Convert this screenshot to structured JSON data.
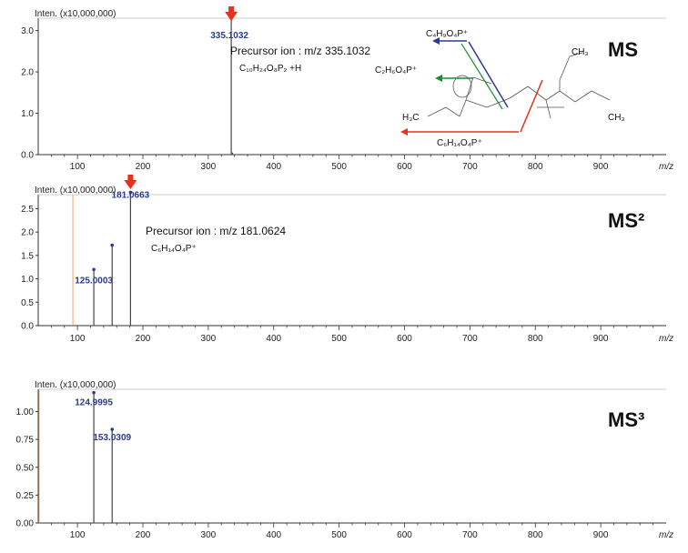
{
  "chart_data": [
    {
      "type": "bar",
      "panel_title": "MS",
      "y_unit_label": "Inten. (x10,000,000)",
      "xlabel": "m/z",
      "xlim": [
        40,
        1000
      ],
      "x_ticks": [
        "100",
        "200",
        "300",
        "400",
        "500",
        "600",
        "700",
        "800",
        "900"
      ],
      "ylim": [
        0,
        3.3
      ],
      "y_ticks": [
        "0.0",
        "1.0",
        "2.0",
        "3.0"
      ],
      "peaks": [
        {
          "x": 335.1032,
          "y": 3.3,
          "label": "335.1032",
          "precursor_marker": true
        },
        {
          "x": 337.0,
          "y": 0.05,
          "label": ""
        }
      ],
      "annotation": {
        "precursor_text": "Precursor ion : m/z 335.1032",
        "formula_text": "C₁₀H₂₄O₈P₂ +H"
      },
      "fragments": [
        {
          "label": "C₄H₉O₄P⁺",
          "color": "#2b3990"
        },
        {
          "label": "C₂H₆O₄P⁺",
          "color": "#1d8a34"
        },
        {
          "label": "C₆H₁₄O₄P⁺",
          "color": "#e8301d"
        }
      ],
      "structure_labels": [
        "H₃C",
        "CH₃",
        "CH₃"
      ]
    },
    {
      "type": "bar",
      "panel_title": "MS²",
      "y_unit_label": "Inten. (x10,000,000)",
      "xlabel": "m/z",
      "xlim": [
        40,
        1000
      ],
      "x_ticks": [
        "100",
        "200",
        "300",
        "400",
        "500",
        "600",
        "700",
        "800",
        "900"
      ],
      "ylim": [
        0,
        2.8
      ],
      "y_ticks": [
        "0.0",
        "0.5",
        "1.0",
        "1.5",
        "2.0",
        "2.5"
      ],
      "peaks": [
        {
          "x": 125.0003,
          "y": 1.2,
          "label": "125.0003"
        },
        {
          "x": 153.0,
          "y": 1.72,
          "label": ""
        },
        {
          "x": 181.0663,
          "y": 2.85,
          "label": "181.0663",
          "precursor_marker": true
        }
      ],
      "annotation": {
        "precursor_text": "Precursor ion : m/z 181.0624",
        "formula_text": "C₆H₁₄O₄P⁺"
      },
      "precursor_line_x": 93
    },
    {
      "type": "bar",
      "panel_title": "MS³",
      "y_unit_label": "Inten. (x10,000,000)",
      "xlabel": "m/z",
      "xlim": [
        40,
        1000
      ],
      "x_ticks": [
        "100",
        "200",
        "300",
        "400",
        "500",
        "600",
        "700",
        "800",
        "900"
      ],
      "ylim": [
        0,
        1.2
      ],
      "y_ticks": [
        "0.00",
        "0.25",
        "0.50",
        "0.75",
        "1.00"
      ],
      "peaks": [
        {
          "x": 124.9995,
          "y": 1.17,
          "label": "124.9995"
        },
        {
          "x": 153.0309,
          "y": 0.84,
          "label": "153.0309"
        }
      ]
    }
  ]
}
